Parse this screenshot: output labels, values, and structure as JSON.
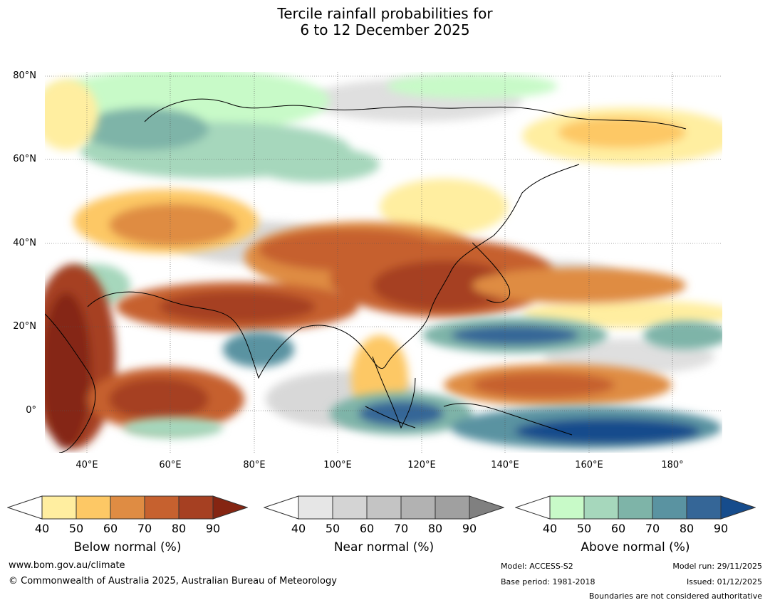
{
  "title": {
    "line1": "Tercile rainfall probabilities for",
    "line2": "6 to 12 December 2025"
  },
  "map": {
    "lat_labels": [
      "80°N",
      "60°N",
      "40°N",
      "20°N",
      "0°"
    ],
    "lon_labels": [
      "40°E",
      "60°E",
      "80°E",
      "100°E",
      "120°E",
      "140°E",
      "160°E",
      "180°"
    ],
    "gridlines": true
  },
  "legends": [
    {
      "title": "Below normal (%)",
      "ticks": [
        "40",
        "50",
        "60",
        "70",
        "80",
        "90"
      ],
      "colors": [
        "#ffeea0",
        "#fdc865",
        "#df8c43",
        "#c6612f",
        "#a64022",
        "#852512"
      ]
    },
    {
      "title": "Near normal (%)",
      "ticks": [
        "40",
        "50",
        "60",
        "70",
        "80",
        "90"
      ],
      "colors": [
        "#e6e6e6",
        "#d4d4d4",
        "#c4c4c4",
        "#b2b2b2",
        "#a0a0a0",
        "#808080"
      ]
    },
    {
      "title": "Above normal (%)",
      "ticks": [
        "40",
        "50",
        "60",
        "70",
        "80",
        "90"
      ],
      "colors": [
        "#c8fac8",
        "#a6d7bc",
        "#7eb4a8",
        "#5a93a1",
        "#356697",
        "#164c8c"
      ]
    }
  ],
  "footer": {
    "website": "www.bom.gov.au/climate",
    "copyright": "© Commonwealth of Australia 2025, Australian Bureau of Meteorology",
    "model": "Model: ACCESS-S2",
    "base_period": "Base period: 1981-2018",
    "model_run": "Model run: 29/11/2025",
    "issued": "Issued: 01/12/2025",
    "disclaimer": "Boundaries are not considered authoritative"
  }
}
